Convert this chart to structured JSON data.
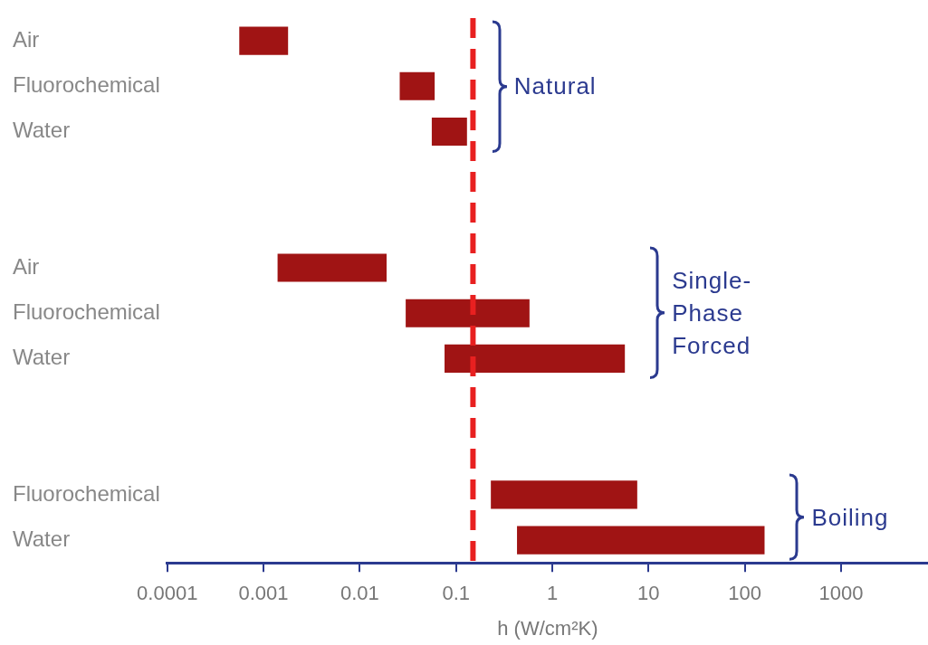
{
  "chart_data": {
    "type": "bar",
    "orientation": "horizontal",
    "log": "x",
    "categories": [
      "Air",
      "Fluorochemical",
      "Water",
      null,
      null,
      "Air",
      "Fluorochemical",
      "Water",
      null,
      null,
      "Fluorochemical",
      "Water"
    ],
    "base": [
      0.00056,
      0.026,
      0.056,
      null,
      null,
      0.0014,
      0.03,
      0.076,
      null,
      null,
      0.23,
      0.43
    ],
    "values": [
      0.00124,
      0.034,
      0.074,
      null,
      null,
      0.0176,
      0.55,
      5.6,
      null,
      null,
      7.4,
      160
    ],
    "color": "#a01414",
    "xlim": [
      0.0001,
      8000
    ],
    "xticks": [
      0.0001,
      0.001,
      0.01,
      0.1,
      1,
      10,
      100,
      1000
    ],
    "xlabel": "h (W/cm²K)",
    "ref_lines": [
      {
        "axis": "x",
        "value": 0.15,
        "color": "#e82020",
        "line_style": "dashed"
      }
    ],
    "annotations": [
      "Natural",
      "Single-Phase Forced",
      "Boiling"
    ]
  }
}
